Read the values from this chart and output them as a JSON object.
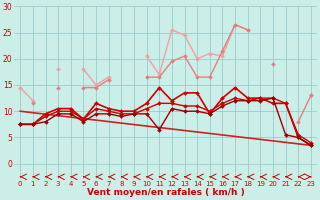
{
  "xlabel": "Vent moyen/en rafales ( km/h )",
  "bg_color": "#cceee8",
  "grid_color": "#99cccc",
  "xlim": [
    -0.5,
    23.5
  ],
  "ylim": [
    0,
    30
  ],
  "yticks": [
    0,
    5,
    10,
    15,
    20,
    25,
    30
  ],
  "xticks": [
    0,
    1,
    2,
    3,
    4,
    5,
    6,
    7,
    8,
    9,
    10,
    11,
    12,
    13,
    14,
    15,
    16,
    17,
    18,
    19,
    20,
    21,
    22,
    23
  ],
  "lines": [
    {
      "y": [
        14.5,
        12.0,
        null,
        18.0,
        null,
        18.0,
        15.0,
        16.5,
        null,
        null,
        20.5,
        17.0,
        25.5,
        24.5,
        20.0,
        21.0,
        20.5,
        26.5,
        25.5,
        null,
        null,
        null,
        null,
        13.0
      ],
      "color": "#f0a0a0",
      "lw": 1.0,
      "marker": "D",
      "ms": 2.0
    },
    {
      "y": [
        null,
        11.5,
        null,
        14.5,
        null,
        14.5,
        14.5,
        16.0,
        null,
        null,
        16.5,
        16.5,
        19.5,
        20.5,
        16.5,
        16.5,
        21.5,
        26.5,
        25.5,
        null,
        19.0,
        null,
        8.0,
        13.0
      ],
      "color": "#e08080",
      "lw": 1.0,
      "marker": "D",
      "ms": 2.0
    },
    {
      "y": [
        7.5,
        7.5,
        9.5,
        10.5,
        10.5,
        8.5,
        11.5,
        10.5,
        10.0,
        10.0,
        11.5,
        14.5,
        12.0,
        13.5,
        13.5,
        9.5,
        12.5,
        14.5,
        12.5,
        12.5,
        11.5,
        11.5,
        5.0,
        3.5
      ],
      "color": "#cc0000",
      "lw": 1.2,
      "marker": "D",
      "ms": 2.0
    },
    {
      "y": [
        7.5,
        7.5,
        9.0,
        10.0,
        10.0,
        8.5,
        10.5,
        10.0,
        9.5,
        9.5,
        10.5,
        11.5,
        11.5,
        11.0,
        11.0,
        10.0,
        11.5,
        12.5,
        12.0,
        12.5,
        12.5,
        11.5,
        5.5,
        4.0
      ],
      "color": "#cc0000",
      "lw": 1.0,
      "marker": "D",
      "ms": 2.0
    },
    {
      "y": [
        7.5,
        7.5,
        8.0,
        9.5,
        9.5,
        8.0,
        9.5,
        9.5,
        9.0,
        9.5,
        9.5,
        6.5,
        10.5,
        10.0,
        10.0,
        9.5,
        11.0,
        12.0,
        12.0,
        12.0,
        12.5,
        5.5,
        5.0,
        3.5
      ],
      "color": "#990000",
      "lw": 1.0,
      "marker": "D",
      "ms": 2.0
    },
    {
      "y": [
        10.0,
        null,
        null,
        null,
        null,
        null,
        null,
        null,
        null,
        null,
        null,
        null,
        null,
        null,
        null,
        null,
        null,
        null,
        null,
        null,
        null,
        null,
        null,
        3.5
      ],
      "color": "#cc2222",
      "lw": 1.2,
      "marker": null,
      "ms": 0
    }
  ]
}
